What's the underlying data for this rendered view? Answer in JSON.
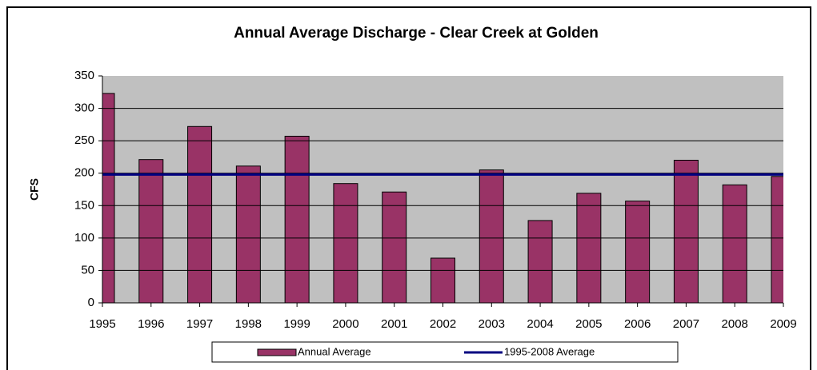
{
  "chart_data": {
    "type": "bar",
    "title": "Annual Average Discharge - Clear Creek at Golden",
    "y_label": "CFS",
    "categories": [
      "1995",
      "1996",
      "1997",
      "1998",
      "1999",
      "2000",
      "2001",
      "2002",
      "2003",
      "2004",
      "2005",
      "2006",
      "2007",
      "2008",
      "2009"
    ],
    "series": [
      {
        "name": "Annual Average",
        "type": "bar",
        "color": "#993366",
        "values": [
          323,
          221,
          272,
          211,
          257,
          184,
          171,
          69,
          205,
          127,
          169,
          157,
          220,
          182,
          195
        ]
      },
      {
        "name": "1995-2008 Average",
        "type": "line",
        "color": "#000080",
        "values": [
          198,
          198,
          198,
          198,
          198,
          198,
          198,
          198,
          198,
          198,
          198,
          198,
          198,
          198,
          198
        ]
      }
    ],
    "ylim": [
      0,
      350
    ],
    "yticks": [
      0,
      50,
      100,
      150,
      200,
      250,
      300,
      350
    ],
    "grid": true,
    "legend": "bottom"
  }
}
